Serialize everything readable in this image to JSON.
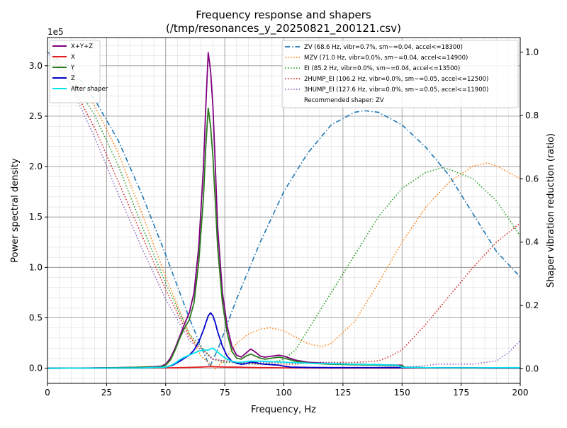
{
  "chart_data": {
    "type": "line",
    "title": "Frequency response and shapers",
    "subtitle": "(/tmp/resonances_y_20250821_200121.csv)",
    "xlabel": "Frequency, Hz",
    "ylabel": "Power spectral density",
    "y2label": "Shaper vibration reduction (ratio)",
    "y_multiplier_label": "1e5",
    "xlim": [
      0,
      200
    ],
    "ylim": [
      -0.15,
      3.28
    ],
    "y2lim": [
      -0.0459,
      1.0459
    ],
    "x_ticks": [
      0,
      25,
      50,
      75,
      100,
      125,
      150,
      175,
      200
    ],
    "y_ticks": [
      0.0,
      0.5,
      1.0,
      1.5,
      2.0,
      2.5,
      3.0
    ],
    "y_tick_labels": [
      "0.0",
      "0.5",
      "1.0",
      "1.5",
      "2.0",
      "2.5",
      "3.0"
    ],
    "y2_ticks": [
      0.0,
      0.2,
      0.4,
      0.6,
      0.8,
      1.0
    ],
    "y2_tick_labels": [
      "0.0",
      "0.2",
      "0.4",
      "0.6",
      "0.8",
      "1.0"
    ],
    "grid": "major and minor",
    "legend_left_position": "top-left",
    "legend_right_position": "top-right",
    "psd_series": [
      {
        "name": "X+Y+Z",
        "color": "#800080",
        "x": [
          0,
          10,
          20,
          30,
          40,
          45,
          48,
          50,
          52,
          54,
          56,
          58,
          60,
          62,
          64,
          66,
          67,
          68,
          69,
          70,
          71,
          72,
          74,
          76,
          78,
          80,
          82,
          84,
          86,
          88,
          90,
          92,
          95,
          98,
          100,
          105,
          110,
          120,
          130,
          140,
          150,
          151,
          160,
          170,
          180,
          190,
          200
        ],
        "y": [
          0,
          0.001,
          0.003,
          0.006,
          0.01,
          0.015,
          0.02,
          0.04,
          0.1,
          0.2,
          0.32,
          0.44,
          0.55,
          0.75,
          1.2,
          2.0,
          2.6,
          3.13,
          2.95,
          2.6,
          2.0,
          1.4,
          0.75,
          0.42,
          0.22,
          0.13,
          0.11,
          0.15,
          0.19,
          0.16,
          0.12,
          0.11,
          0.12,
          0.13,
          0.12,
          0.08,
          0.06,
          0.045,
          0.04,
          0.035,
          0.03,
          0.01,
          0.005,
          0.004,
          0.003,
          0.002,
          0.002
        ]
      },
      {
        "name": "X",
        "color": "#e41a1c",
        "x": [
          0,
          20,
          40,
          50,
          55,
          60,
          65,
          68,
          70,
          72,
          75,
          80,
          85,
          90,
          95,
          100,
          110,
          120,
          150,
          200
        ],
        "y": [
          0,
          0.001,
          0.002,
          0.003,
          0.005,
          0.008,
          0.012,
          0.015,
          0.015,
          0.014,
          0.012,
          0.01,
          0.008,
          0.006,
          0.005,
          0.004,
          0.003,
          0.002,
          0.002,
          0.001
        ]
      },
      {
        "name": "Y",
        "color": "#2a7b1e",
        "x": [
          0,
          10,
          20,
          30,
          40,
          45,
          48,
          50,
          52,
          54,
          56,
          58,
          60,
          62,
          64,
          66,
          67,
          68,
          69,
          70,
          71,
          72,
          74,
          76,
          78,
          80,
          82,
          84,
          86,
          88,
          90,
          92,
          95,
          98,
          100,
          105,
          110,
          120,
          130,
          140,
          150,
          151,
          160,
          170,
          180,
          190,
          200
        ],
        "y": [
          0,
          0.001,
          0.002,
          0.005,
          0.01,
          0.012,
          0.015,
          0.03,
          0.08,
          0.18,
          0.3,
          0.4,
          0.48,
          0.65,
          1.05,
          1.7,
          2.2,
          2.58,
          2.4,
          2.1,
          1.65,
          1.2,
          0.65,
          0.35,
          0.17,
          0.1,
          0.09,
          0.12,
          0.14,
          0.12,
          0.1,
          0.09,
          0.1,
          0.11,
          0.1,
          0.07,
          0.05,
          0.04,
          0.035,
          0.03,
          0.025,
          0.01,
          0.005,
          0.004,
          0.003,
          0.002,
          0.002
        ]
      },
      {
        "name": "Z",
        "color": "#0000cc",
        "x": [
          0,
          20,
          40,
          50,
          53,
          56,
          58,
          60,
          62,
          64,
          66,
          68,
          69,
          70,
          71,
          72,
          74,
          76,
          78,
          80,
          82,
          84,
          86,
          88,
          90,
          92,
          95,
          98,
          100,
          103,
          105,
          110,
          120,
          130,
          140,
          150,
          160,
          170,
          180,
          190,
          200
        ],
        "y": [
          0,
          0.001,
          0.003,
          0.01,
          0.03,
          0.07,
          0.1,
          0.13,
          0.18,
          0.26,
          0.38,
          0.52,
          0.55,
          0.52,
          0.45,
          0.36,
          0.22,
          0.12,
          0.07,
          0.05,
          0.04,
          0.045,
          0.06,
          0.055,
          0.045,
          0.04,
          0.035,
          0.03,
          0.02,
          0.012,
          0.01,
          0.008,
          0.006,
          0.006,
          0.006,
          0.006,
          0.005,
          0.004,
          0.004,
          0.003,
          0.003
        ]
      },
      {
        "name": "After shaper",
        "color": "#00e5ee",
        "x": [
          0,
          20,
          40,
          50,
          52,
          54,
          56,
          58,
          60,
          62,
          64,
          66,
          68,
          70,
          72,
          74,
          76,
          78,
          80,
          82,
          84,
          86,
          88,
          90,
          95,
          100,
          105,
          110,
          120,
          130,
          140,
          148,
          150,
          160,
          170,
          180,
          190,
          200
        ],
        "y": [
          0,
          0.001,
          0.003,
          0.01,
          0.025,
          0.05,
          0.085,
          0.11,
          0.13,
          0.15,
          0.17,
          0.18,
          0.18,
          0.2,
          0.16,
          0.12,
          0.09,
          0.07,
          0.06,
          0.06,
          0.065,
          0.07,
          0.07,
          0.07,
          0.065,
          0.06,
          0.055,
          0.05,
          0.045,
          0.04,
          0.035,
          0.03,
          0.01,
          0.005,
          0.004,
          0.004,
          0.005,
          0.006
        ]
      }
    ],
    "shaper_series": [
      {
        "name": "ZV (68.6 Hz, vibr=0.7%, sm~=0.04, accel<=18300)",
        "color": "#1f77b4",
        "dash": "dashdot",
        "x": [
          0,
          10,
          20,
          30,
          40,
          50,
          60,
          65,
          68.6,
          72,
          80,
          90,
          100,
          110,
          120,
          130,
          134,
          140,
          150,
          160,
          170,
          180,
          190,
          200
        ],
        "y": [
          1.0,
          0.95,
          0.85,
          0.72,
          0.55,
          0.36,
          0.16,
          0.07,
          0.007,
          0.06,
          0.22,
          0.4,
          0.56,
          0.68,
          0.77,
          0.81,
          0.815,
          0.81,
          0.77,
          0.7,
          0.61,
          0.49,
          0.37,
          0.29
        ]
      },
      {
        "name": "MZV (71.0 Hz, vibr=0.0%, sm~=0.04, accel<=14900)",
        "color": "#ff7f0e",
        "dash": "dotted",
        "x": [
          0,
          10,
          20,
          30,
          40,
          50,
          60,
          65,
          71,
          75,
          80,
          85,
          90,
          94,
          100,
          105,
          110,
          116,
          120,
          130,
          140,
          150,
          160,
          170,
          180,
          186,
          190,
          200
        ],
        "y": [
          1.0,
          0.93,
          0.83,
          0.68,
          0.49,
          0.29,
          0.11,
          0.04,
          0.0,
          0.03,
          0.08,
          0.11,
          0.125,
          0.13,
          0.12,
          0.1,
          0.08,
          0.07,
          0.08,
          0.15,
          0.27,
          0.4,
          0.51,
          0.59,
          0.64,
          0.65,
          0.64,
          0.6
        ]
      },
      {
        "name": "EI (85.2 Hz, vibr=0.0%, sm~=0.04, accel<=13500)",
        "color": "#2ca02c",
        "dash": "dotted",
        "x": [
          0,
          10,
          20,
          30,
          40,
          50,
          60,
          70,
          75,
          80,
          85.2,
          90,
          95,
          100,
          105,
          110,
          120,
          130,
          140,
          150,
          160,
          167,
          170,
          180,
          190,
          200
        ],
        "y": [
          1.0,
          0.92,
          0.8,
          0.64,
          0.45,
          0.27,
          0.11,
          0.03,
          0.02,
          0.02,
          0.015,
          0.015,
          0.02,
          0.03,
          0.06,
          0.12,
          0.24,
          0.36,
          0.48,
          0.57,
          0.62,
          0.635,
          0.63,
          0.6,
          0.53,
          0.42
        ]
      },
      {
        "name": "2HUMP_EI (106.2 Hz, vibr=0.0%, sm~=0.05, accel<=12500)",
        "color": "#d62728",
        "dash": "dotted",
        "x": [
          0,
          10,
          20,
          30,
          40,
          50,
          60,
          70,
          80,
          90,
          100,
          106,
          110,
          120,
          130,
          140,
          145,
          150,
          160,
          170,
          180,
          190,
          200
        ],
        "y": [
          1.0,
          0.9,
          0.76,
          0.59,
          0.42,
          0.25,
          0.1,
          0.03,
          0.02,
          0.015,
          0.015,
          0.015,
          0.02,
          0.02,
          0.02,
          0.025,
          0.04,
          0.06,
          0.14,
          0.23,
          0.32,
          0.4,
          0.46
        ]
      },
      {
        "name": "3HUMP_EI (127.6 Hz, vibr=0.0%, sm~=0.05, accel<=11900)",
        "color": "#9467bd",
        "dash": "dotted",
        "x": [
          0,
          10,
          20,
          30,
          40,
          50,
          60,
          70,
          80,
          90,
          100,
          110,
          120,
          127.6,
          135,
          140,
          150,
          160,
          165,
          170,
          180,
          190,
          195,
          200
        ],
        "y": [
          1.0,
          0.89,
          0.73,
          0.55,
          0.38,
          0.22,
          0.09,
          0.03,
          0.02,
          0.02,
          0.02,
          0.02,
          0.02,
          0.015,
          0.015,
          0.01,
          0.005,
          0.01,
          0.015,
          0.015,
          0.015,
          0.025,
          0.05,
          0.09
        ]
      }
    ],
    "recommended_text": "Recommended shaper: ZV"
  }
}
